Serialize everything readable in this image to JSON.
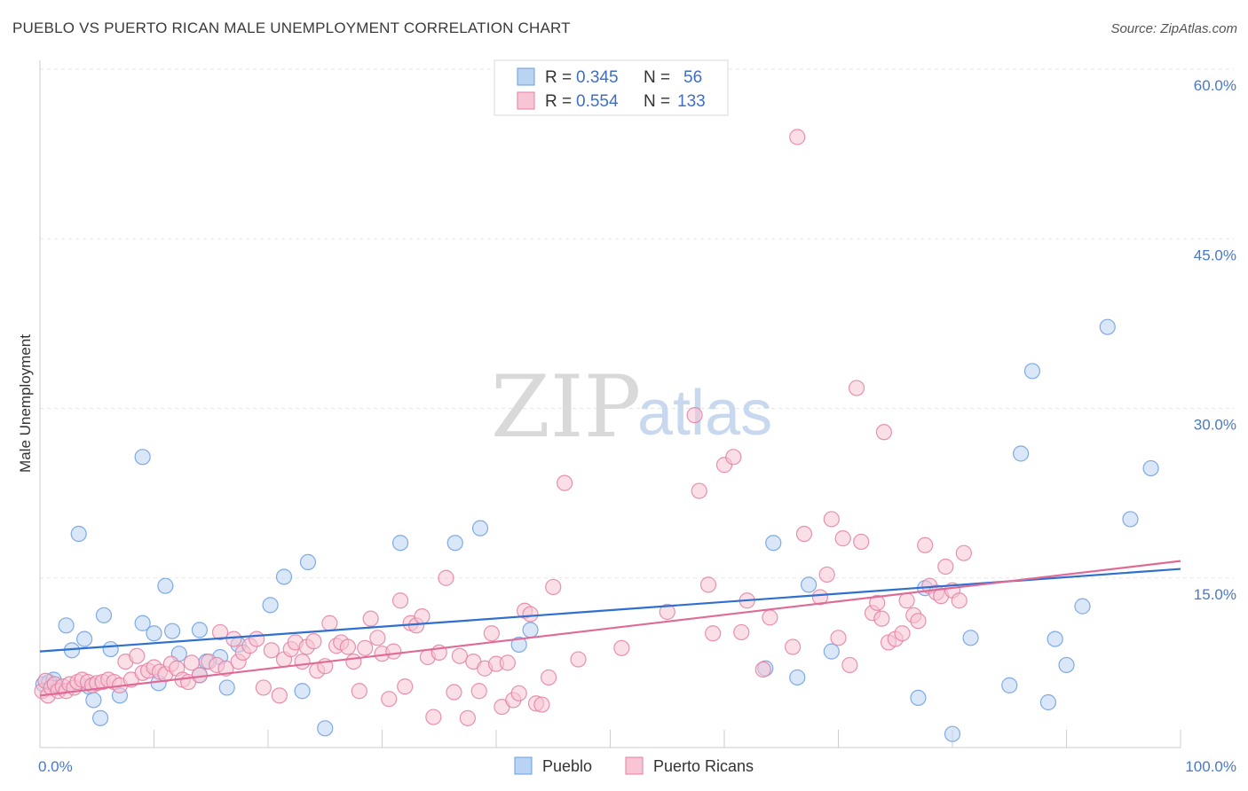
{
  "header": {
    "title": "PUEBLO VS PUERTO RICAN MALE UNEMPLOYMENT CORRELATION CHART",
    "source": "Source: ZipAtlas.com"
  },
  "watermark": {
    "zip": "ZIP",
    "atlas": "atlas"
  },
  "legend": {
    "rows": [
      {
        "r_label": "R = ",
        "r_value": "0.345",
        "n_label": "N = ",
        "n_value": "56",
        "color": "#a9c8f0"
      },
      {
        "r_label": "R = ",
        "r_value": "0.554",
        "n_label": "N = ",
        "n_value": "133",
        "color": "#f5b8cb"
      }
    ]
  },
  "chart_data": {
    "type": "scatter",
    "title": "PUEBLO VS PUERTO RICAN MALE UNEMPLOYMENT CORRELATION CHART",
    "xlabel": "",
    "ylabel": "Male Unemployment",
    "xlim": [
      0,
      100
    ],
    "ylim": [
      0,
      60
    ],
    "x_tick_labels": [
      "0.0%",
      "100.0%"
    ],
    "y_tick_labels": [
      "15.0%",
      "30.0%",
      "45.0%",
      "60.0%"
    ],
    "y_tick_values": [
      15,
      30,
      45,
      60
    ],
    "grid": true,
    "legend_position": "top-center",
    "series": [
      {
        "name": "Pueblo",
        "color": "#6c9de0",
        "fill": "#b9d3f3",
        "trend": {
          "x": [
            0,
            100
          ],
          "y": [
            8.5,
            15.8
          ]
        },
        "points": [
          [
            0.3,
            5.6
          ],
          [
            0.8,
            5.8
          ],
          [
            1.2,
            6.0
          ],
          [
            1.6,
            5.3
          ],
          [
            2.3,
            10.8
          ],
          [
            2.8,
            8.6
          ],
          [
            3.4,
            18.9
          ],
          [
            3.9,
            9.6
          ],
          [
            4.3,
            5.4
          ],
          [
            4.7,
            4.2
          ],
          [
            5.3,
            2.6
          ],
          [
            5.6,
            11.7
          ],
          [
            6.2,
            8.7
          ],
          [
            7.0,
            4.6
          ],
          [
            9.0,
            25.7
          ],
          [
            9.0,
            11.0
          ],
          [
            10.0,
            10.1
          ],
          [
            10.4,
            5.7
          ],
          [
            11.0,
            14.3
          ],
          [
            11.6,
            10.3
          ],
          [
            12.2,
            8.3
          ],
          [
            14.0,
            10.4
          ],
          [
            14.0,
            6.4
          ],
          [
            14.6,
            7.6
          ],
          [
            15.8,
            8.0
          ],
          [
            16.4,
            5.3
          ],
          [
            17.4,
            9.1
          ],
          [
            20.2,
            12.6
          ],
          [
            21.4,
            15.1
          ],
          [
            23.0,
            5.0
          ],
          [
            23.5,
            16.4
          ],
          [
            25.0,
            1.7
          ],
          [
            31.6,
            18.1
          ],
          [
            36.4,
            18.1
          ],
          [
            38.6,
            19.4
          ],
          [
            42.0,
            9.1
          ],
          [
            43.0,
            10.4
          ],
          [
            63.6,
            7.0
          ],
          [
            64.3,
            18.1
          ],
          [
            66.4,
            6.2
          ],
          [
            67.4,
            14.4
          ],
          [
            69.4,
            8.5
          ],
          [
            77.0,
            4.4
          ],
          [
            77.6,
            14.1
          ],
          [
            80.0,
            1.2
          ],
          [
            81.6,
            9.7
          ],
          [
            85.0,
            5.5
          ],
          [
            86.0,
            26.0
          ],
          [
            87.0,
            33.3
          ],
          [
            88.4,
            4.0
          ],
          [
            89.0,
            9.6
          ],
          [
            90.0,
            7.3
          ],
          [
            91.4,
            12.5
          ],
          [
            93.6,
            37.2
          ],
          [
            95.6,
            20.2
          ],
          [
            97.4,
            24.7
          ]
        ]
      },
      {
        "name": "Puerto Ricans",
        "color": "#e47fa2",
        "fill": "#f7c5d4",
        "trend": {
          "x": [
            0,
            100
          ],
          "y": [
            4.6,
            16.5
          ]
        },
        "points": [
          [
            0.2,
            5.0
          ],
          [
            0.5,
            5.9
          ],
          [
            0.7,
            4.6
          ],
          [
            1.0,
            5.3
          ],
          [
            1.3,
            5.6
          ],
          [
            1.6,
            5.0
          ],
          [
            2.0,
            5.4
          ],
          [
            2.3,
            5.0
          ],
          [
            2.6,
            5.6
          ],
          [
            3.0,
            5.3
          ],
          [
            3.3,
            5.8
          ],
          [
            3.7,
            6.0
          ],
          [
            4.2,
            5.8
          ],
          [
            4.6,
            5.5
          ],
          [
            5.0,
            5.7
          ],
          [
            5.5,
            5.8
          ],
          [
            6.0,
            6.0
          ],
          [
            6.5,
            5.8
          ],
          [
            7.0,
            5.5
          ],
          [
            7.5,
            7.6
          ],
          [
            8.0,
            6.0
          ],
          [
            8.5,
            8.1
          ],
          [
            9.0,
            6.6
          ],
          [
            9.5,
            6.8
          ],
          [
            10.0,
            7.1
          ],
          [
            10.5,
            6.7
          ],
          [
            11.0,
            6.5
          ],
          [
            11.5,
            7.4
          ],
          [
            12.0,
            7.0
          ],
          [
            12.5,
            6.0
          ],
          [
            13.0,
            5.8
          ],
          [
            13.3,
            7.5
          ],
          [
            14.0,
            6.4
          ],
          [
            14.8,
            7.6
          ],
          [
            15.5,
            7.3
          ],
          [
            15.8,
            10.2
          ],
          [
            16.3,
            7.0
          ],
          [
            17.0,
            9.6
          ],
          [
            17.4,
            7.6
          ],
          [
            17.8,
            8.4
          ],
          [
            18.4,
            9.0
          ],
          [
            19.0,
            9.6
          ],
          [
            19.6,
            5.3
          ],
          [
            20.3,
            8.6
          ],
          [
            21.0,
            4.6
          ],
          [
            21.4,
            7.8
          ],
          [
            22.0,
            8.7
          ],
          [
            22.4,
            9.3
          ],
          [
            23.0,
            7.6
          ],
          [
            23.4,
            8.9
          ],
          [
            24.0,
            9.4
          ],
          [
            24.3,
            6.8
          ],
          [
            25.0,
            7.2
          ],
          [
            25.4,
            11.0
          ],
          [
            26.0,
            9.0
          ],
          [
            26.4,
            9.3
          ],
          [
            27.0,
            8.9
          ],
          [
            27.5,
            7.6
          ],
          [
            28.0,
            5.0
          ],
          [
            28.5,
            8.8
          ],
          [
            29.0,
            11.4
          ],
          [
            29.6,
            9.7
          ],
          [
            30.0,
            8.3
          ],
          [
            30.6,
            4.3
          ],
          [
            31.0,
            8.5
          ],
          [
            31.6,
            13.0
          ],
          [
            32.0,
            5.4
          ],
          [
            32.5,
            11.0
          ],
          [
            33.0,
            10.8
          ],
          [
            33.5,
            11.6
          ],
          [
            34.0,
            8.0
          ],
          [
            34.5,
            2.7
          ],
          [
            35.0,
            8.4
          ],
          [
            35.6,
            15.0
          ],
          [
            36.3,
            4.9
          ],
          [
            36.8,
            8.1
          ],
          [
            37.5,
            2.6
          ],
          [
            38.0,
            7.6
          ],
          [
            38.5,
            5.0
          ],
          [
            39.0,
            7.0
          ],
          [
            39.6,
            10.1
          ],
          [
            40.0,
            7.4
          ],
          [
            40.5,
            3.6
          ],
          [
            41.0,
            7.5
          ],
          [
            41.5,
            4.2
          ],
          [
            42.0,
            4.8
          ],
          [
            42.5,
            12.1
          ],
          [
            43.0,
            11.8
          ],
          [
            43.5,
            3.9
          ],
          [
            44.0,
            3.8
          ],
          [
            44.6,
            6.2
          ],
          [
            45.0,
            14.2
          ],
          [
            46.0,
            23.4
          ],
          [
            47.2,
            7.8
          ],
          [
            51.0,
            8.8
          ],
          [
            55.0,
            12.0
          ],
          [
            57.4,
            29.4
          ],
          [
            57.8,
            22.7
          ],
          [
            58.6,
            14.4
          ],
          [
            59.0,
            10.1
          ],
          [
            60.0,
            25.0
          ],
          [
            60.8,
            25.7
          ],
          [
            61.5,
            10.2
          ],
          [
            62.0,
            13.0
          ],
          [
            63.4,
            6.9
          ],
          [
            64.0,
            11.5
          ],
          [
            66.0,
            8.9
          ],
          [
            66.4,
            54.0
          ],
          [
            67.0,
            18.9
          ],
          [
            68.4,
            13.3
          ],
          [
            69.0,
            15.3
          ],
          [
            69.4,
            20.2
          ],
          [
            70.0,
            9.7
          ],
          [
            70.4,
            18.5
          ],
          [
            71.0,
            7.3
          ],
          [
            71.6,
            31.8
          ],
          [
            72.0,
            18.2
          ],
          [
            73.0,
            11.9
          ],
          [
            73.4,
            12.8
          ],
          [
            73.8,
            11.4
          ],
          [
            74.0,
            27.9
          ],
          [
            74.4,
            9.3
          ],
          [
            75.0,
            9.6
          ],
          [
            75.6,
            10.1
          ],
          [
            76.0,
            13.0
          ],
          [
            76.6,
            11.7
          ],
          [
            77.0,
            11.2
          ],
          [
            77.6,
            17.9
          ],
          [
            78.0,
            14.3
          ],
          [
            78.6,
            13.7
          ],
          [
            79.0,
            13.4
          ],
          [
            79.4,
            16.0
          ],
          [
            80.0,
            13.9
          ],
          [
            80.6,
            13.0
          ],
          [
            81.0,
            17.2
          ]
        ]
      }
    ]
  },
  "bottom_legend": {
    "items": [
      {
        "label": "Pueblo",
        "color": "#b9d3f3"
      },
      {
        "label": "Puerto Ricans",
        "color": "#f7c5d4"
      }
    ]
  }
}
